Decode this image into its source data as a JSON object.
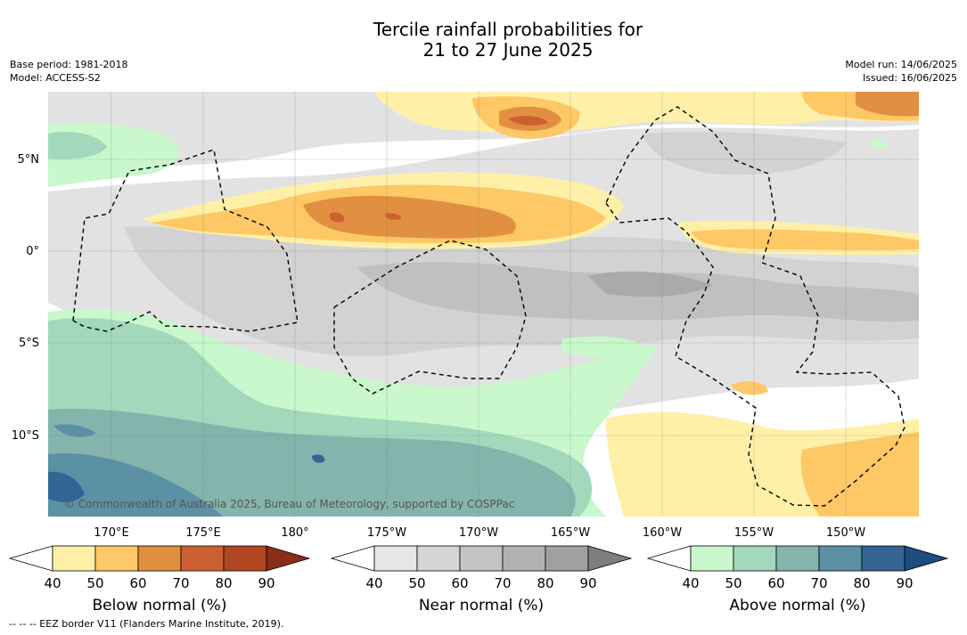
{
  "title_line1": "Tercile rainfall probabilities for",
  "title_line2": "21 to 27 June 2025",
  "base_period": "Base period: 1981-2018",
  "model": "Model: ACCESS-S2",
  "model_run": "Model run: 14/06/2025",
  "issued": "Issued: 16/06/2025",
  "copyright": "© Commonwealth of Australia 2025, Bureau of Meteorology, supported by COSPPac",
  "eez_note": "-- -- -- EEZ border V11 (Flanders Marine Institute, 2019).",
  "lat_labels": [
    "5°N",
    "0°",
    "5°S",
    "10°S"
  ],
  "lon_labels": [
    "170°E",
    "175°E",
    "180°",
    "175°W",
    "170°W",
    "165°W",
    "160°W",
    "155°W",
    "150°W"
  ],
  "colorbars": [
    {
      "label": "Below normal (%)",
      "ticks": [
        "40",
        "50",
        "60",
        "70",
        "80",
        "90"
      ],
      "colors": [
        "#fff0a8",
        "#fdc865",
        "#e09040",
        "#cc6030",
        "#b04622",
        "#8c2c1a"
      ]
    },
    {
      "label": "Near normal (%)",
      "ticks": [
        "40",
        "50",
        "60",
        "70",
        "80",
        "90"
      ],
      "colors": [
        "#e6e6e6",
        "#d6d6d6",
        "#c4c4c4",
        "#b2b2b2",
        "#a0a0a0",
        "#7e7e7e"
      ]
    },
    {
      "label": "Above normal (%)",
      "ticks": [
        "40",
        "50",
        "60",
        "70",
        "80",
        "90"
      ],
      "colors": [
        "#c8f8cc",
        "#a4d8bc",
        "#84b4ac",
        "#5c90a4",
        "#346494",
        "#1c4c80"
      ]
    }
  ],
  "colors": {
    "background": "#ffffff",
    "gridline": "#777777",
    "eez": "#000000"
  }
}
